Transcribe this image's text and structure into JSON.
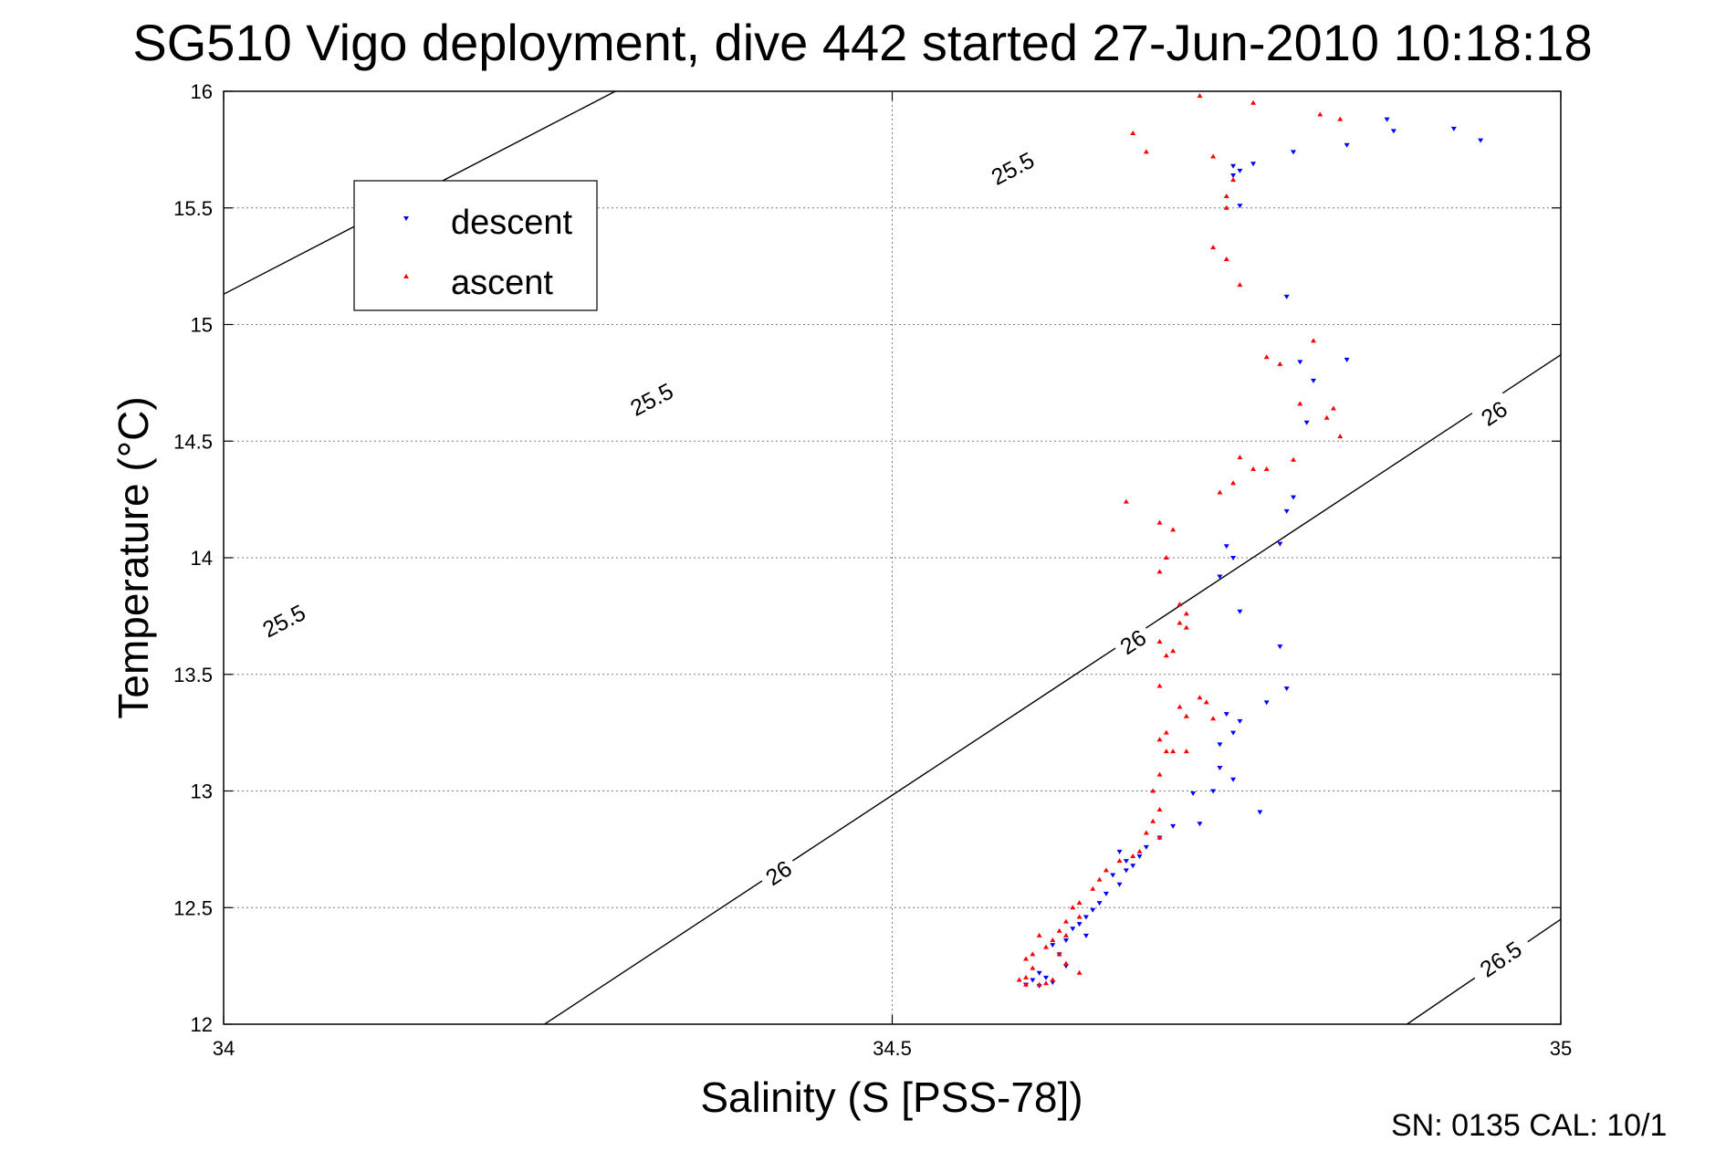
{
  "chart_data": {
    "type": "scatter",
    "title": "SG510 Vigo deployment, dive 442 started 27-Jun-2010 10:18:18",
    "xlabel": "Salinity (S [PSS-78])",
    "ylabel": "Temperature (°C)",
    "xlim": [
      34,
      35
    ],
    "ylim": [
      12,
      16
    ],
    "xticks": [
      "34",
      "34.5",
      "35"
    ],
    "yticks": [
      "12",
      "12.5",
      "13",
      "13.5",
      "14",
      "14.5",
      "15",
      "15.5",
      "16"
    ],
    "grid": true,
    "legend_position": "top-left",
    "footer": "SN: 0135  CAL: 10/1",
    "colors": {
      "descent": "#0000ff",
      "ascent": "#ff0000",
      "contour": "#000000",
      "grid": "#7f7f7f"
    },
    "contours": [
      {
        "level": "25.5",
        "points": [
          [
            34.0,
            15.13
          ],
          [
            35.0,
            18.1
          ]
        ],
        "labels": [
          {
            "text": "25.5",
            "at": [
              34.045,
              13.73
            ]
          },
          {
            "text": "25.5",
            "at": [
              34.32,
              14.68
            ]
          },
          {
            "text": "25.5",
            "at": [
              34.59,
              15.67
            ]
          }
        ]
      },
      {
        "level": "26",
        "points": [
          [
            34.24,
            12.0
          ],
          [
            35.0,
            14.87
          ]
        ],
        "labels": [
          {
            "text": "26",
            "at": [
              34.415,
              12.65
            ]
          },
          {
            "text": "26",
            "at": [
              34.68,
              13.64
            ]
          },
          {
            "text": "26",
            "at": [
              34.95,
              14.62
            ]
          }
        ]
      },
      {
        "level": "26.5",
        "points": [
          [
            34.885,
            12.0
          ],
          [
            35.0,
            12.45
          ]
        ],
        "labels": [
          {
            "text": "26.5",
            "at": [
              34.955,
              12.28
            ]
          }
        ]
      }
    ],
    "series": [
      {
        "name": "descent",
        "marker": "triangle-down",
        "points": [
          [
            34.87,
            15.88
          ],
          [
            34.875,
            15.83
          ],
          [
            34.92,
            15.84
          ],
          [
            34.94,
            15.79
          ],
          [
            34.84,
            15.77
          ],
          [
            34.8,
            15.74
          ],
          [
            34.755,
            15.68
          ],
          [
            34.76,
            15.66
          ],
          [
            34.77,
            15.69
          ],
          [
            34.755,
            15.64
          ],
          [
            34.76,
            15.51
          ],
          [
            34.795,
            15.12
          ],
          [
            34.84,
            14.85
          ],
          [
            34.805,
            14.84
          ],
          [
            34.815,
            14.76
          ],
          [
            34.81,
            14.58
          ],
          [
            34.795,
            14.2
          ],
          [
            34.8,
            14.26
          ],
          [
            34.79,
            14.06
          ],
          [
            34.75,
            14.05
          ],
          [
            34.755,
            14.0
          ],
          [
            34.745,
            13.92
          ],
          [
            34.76,
            13.77
          ],
          [
            34.79,
            13.62
          ],
          [
            34.795,
            13.44
          ],
          [
            34.78,
            13.38
          ],
          [
            34.75,
            13.33
          ],
          [
            34.76,
            13.3
          ],
          [
            34.755,
            13.25
          ],
          [
            34.745,
            13.2
          ],
          [
            34.745,
            13.1
          ],
          [
            34.755,
            13.05
          ],
          [
            34.74,
            13.0
          ],
          [
            34.725,
            12.99
          ],
          [
            34.775,
            12.91
          ],
          [
            34.73,
            12.86
          ],
          [
            34.71,
            12.85
          ],
          [
            34.7,
            12.8
          ],
          [
            34.69,
            12.76
          ],
          [
            34.67,
            12.74
          ],
          [
            34.675,
            12.7
          ],
          [
            34.685,
            12.72
          ],
          [
            34.68,
            12.68
          ],
          [
            34.675,
            12.66
          ],
          [
            34.665,
            12.64
          ],
          [
            34.67,
            12.6
          ],
          [
            34.66,
            12.56
          ],
          [
            34.655,
            12.52
          ],
          [
            34.65,
            12.49
          ],
          [
            34.645,
            12.46
          ],
          [
            34.64,
            12.43
          ],
          [
            34.635,
            12.41
          ],
          [
            34.645,
            12.38
          ],
          [
            34.63,
            12.36
          ],
          [
            34.62,
            12.34
          ],
          [
            34.625,
            12.3
          ],
          [
            34.63,
            12.25
          ],
          [
            34.61,
            12.22
          ],
          [
            34.615,
            12.2
          ],
          [
            34.605,
            12.19
          ],
          [
            34.62,
            12.18
          ],
          [
            34.6,
            12.17
          ],
          [
            34.61,
            12.165
          ]
        ]
      },
      {
        "name": "ascent",
        "marker": "triangle-up",
        "points": [
          [
            34.73,
            15.98
          ],
          [
            34.77,
            15.95
          ],
          [
            34.82,
            15.9
          ],
          [
            34.835,
            15.88
          ],
          [
            34.68,
            15.82
          ],
          [
            34.69,
            15.74
          ],
          [
            34.74,
            15.72
          ],
          [
            34.755,
            15.62
          ],
          [
            34.75,
            15.55
          ],
          [
            34.75,
            15.5
          ],
          [
            34.74,
            15.33
          ],
          [
            34.75,
            15.28
          ],
          [
            34.76,
            15.17
          ],
          [
            34.815,
            14.93
          ],
          [
            34.78,
            14.86
          ],
          [
            34.79,
            14.83
          ],
          [
            34.805,
            14.66
          ],
          [
            34.825,
            14.6
          ],
          [
            34.83,
            14.64
          ],
          [
            34.835,
            14.52
          ],
          [
            34.8,
            14.42
          ],
          [
            34.76,
            14.43
          ],
          [
            34.77,
            14.38
          ],
          [
            34.78,
            14.38
          ],
          [
            34.755,
            14.32
          ],
          [
            34.745,
            14.28
          ],
          [
            34.675,
            14.24
          ],
          [
            34.7,
            14.15
          ],
          [
            34.71,
            14.12
          ],
          [
            34.705,
            14.0
          ],
          [
            34.7,
            13.94
          ],
          [
            34.715,
            13.8
          ],
          [
            34.72,
            13.76
          ],
          [
            34.715,
            13.72
          ],
          [
            34.72,
            13.7
          ],
          [
            34.7,
            13.64
          ],
          [
            34.71,
            13.6
          ],
          [
            34.705,
            13.58
          ],
          [
            34.7,
            13.45
          ],
          [
            34.73,
            13.4
          ],
          [
            34.735,
            13.38
          ],
          [
            34.715,
            13.36
          ],
          [
            34.72,
            13.32
          ],
          [
            34.74,
            13.31
          ],
          [
            34.705,
            13.25
          ],
          [
            34.7,
            13.22
          ],
          [
            34.705,
            13.17
          ],
          [
            34.71,
            13.17
          ],
          [
            34.72,
            13.17
          ],
          [
            34.7,
            13.07
          ],
          [
            34.695,
            13.0
          ],
          [
            34.7,
            12.92
          ],
          [
            34.695,
            12.87
          ],
          [
            34.69,
            12.82
          ],
          [
            34.7,
            12.8
          ],
          [
            34.685,
            12.74
          ],
          [
            34.68,
            12.72
          ],
          [
            34.67,
            12.7
          ],
          [
            34.66,
            12.66
          ],
          [
            34.655,
            12.62
          ],
          [
            34.65,
            12.58
          ],
          [
            34.64,
            12.52
          ],
          [
            34.635,
            12.5
          ],
          [
            34.64,
            12.46
          ],
          [
            34.63,
            12.44
          ],
          [
            34.625,
            12.4
          ],
          [
            34.63,
            12.38
          ],
          [
            34.62,
            12.36
          ],
          [
            34.61,
            12.38
          ],
          [
            34.615,
            12.33
          ],
          [
            34.605,
            12.3
          ],
          [
            34.6,
            12.28
          ],
          [
            34.605,
            12.24
          ],
          [
            34.6,
            12.2
          ],
          [
            34.595,
            12.19
          ],
          [
            34.6,
            12.17
          ],
          [
            34.61,
            12.17
          ],
          [
            34.615,
            12.175
          ],
          [
            34.62,
            12.19
          ],
          [
            34.625,
            12.3
          ],
          [
            34.63,
            12.26
          ],
          [
            34.64,
            12.22
          ]
        ]
      }
    ]
  }
}
